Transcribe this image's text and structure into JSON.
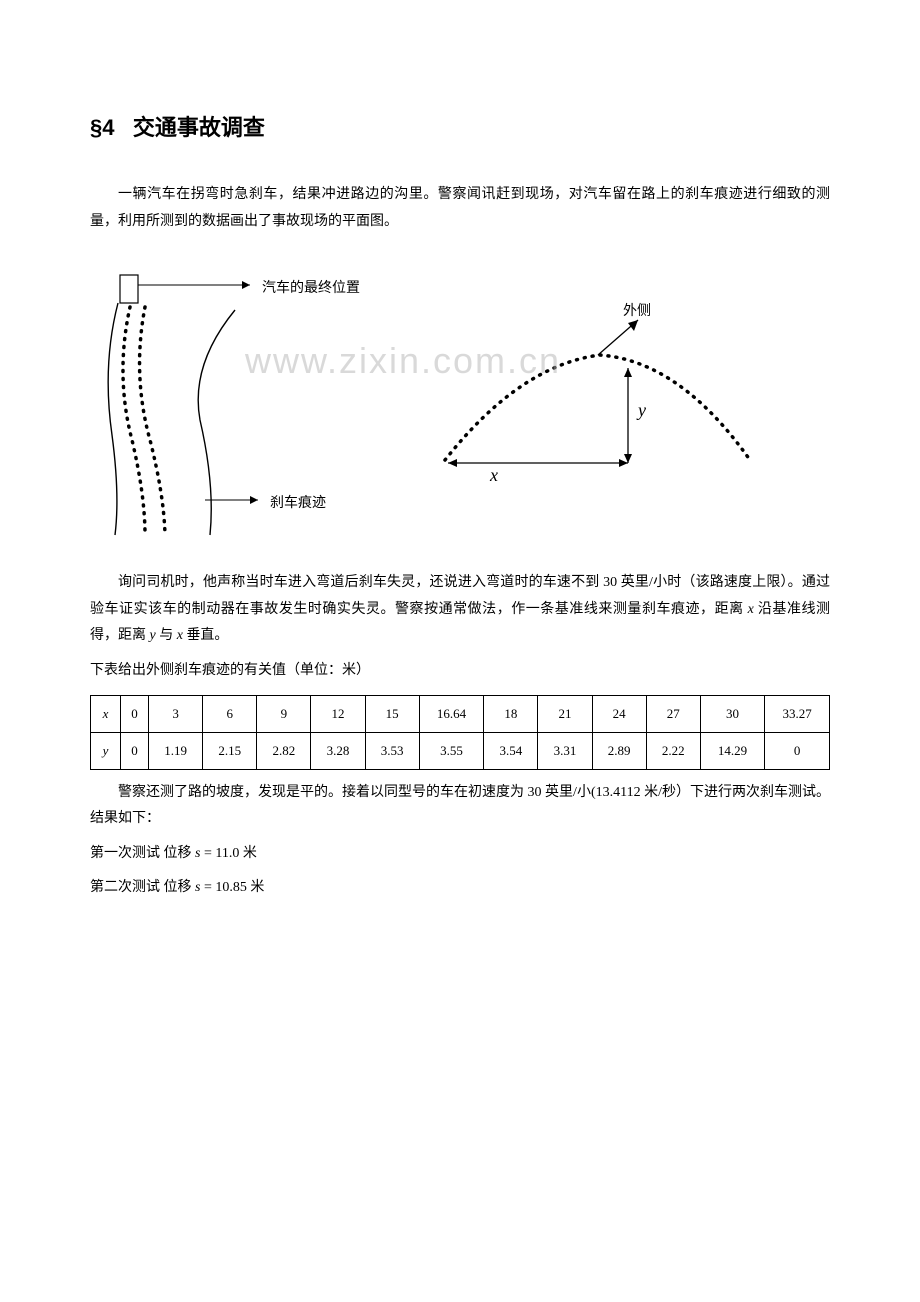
{
  "section": {
    "number": "§4",
    "title": "交通事故调查"
  },
  "paragraphs": {
    "p1": "一辆汽车在拐弯时急刹车，结果冲进路边的沟里。警察闻讯赶到现场，对汽车留在路上的刹车痕迹进行细致的测量，利用所测到的数据画出了事故现场的平面图。",
    "p2_part1": "询问司机时，他声称当时车进入弯道后刹车失灵，还说进入弯道时的车速不到 30 英里/小时（该路速度上限）。通过验车证实该车的制动器在事故发生时确实失灵。警察按通常做法，作一条基准线来测量刹车痕迹，距离 ",
    "p2_part2": " 沿基准线测得，距离 ",
    "p2_part3": " 与 ",
    "p2_part4": " 垂直。",
    "table_caption": "下表给出外侧刹车痕迹的有关值（单位：米）",
    "p3": "警察还测了路的坡度，发现是平的。接着以同型号的车在初速度为 30 英里/小(13.4112 米/秒）下进行两次刹车测试。结果如下：",
    "test1_label": "第一次测试  位移 ",
    "test1_value": " = 11.0 米",
    "test2_label": "第二次测试  位移 ",
    "test2_value": " = 10.85 米"
  },
  "diagram_labels": {
    "car_position": "汽车的最终位置",
    "brake_trace": "刹车痕迹",
    "outside": "外侧",
    "x_label": "x",
    "y_label": "y"
  },
  "watermark_text": "www.zixin.com.cn",
  "table": {
    "row_headers": [
      "x",
      "y"
    ],
    "columns": [
      "0",
      "3",
      "6",
      "9",
      "12",
      "15",
      "16.64",
      "18",
      "21",
      "24",
      "27",
      "30",
      "33.27"
    ],
    "values": [
      "0",
      "1.19",
      "2.15",
      "2.82",
      "3.28",
      "3.53",
      "3.55",
      "3.54",
      "3.31",
      "2.89",
      "2.22",
      "14.29",
      "0"
    ]
  },
  "colors": {
    "text": "#000000",
    "background": "#ffffff",
    "watermark": "rgba(180,180,180,0.5)",
    "border": "#000000"
  },
  "math_vars": {
    "x": "x",
    "y": "y",
    "s": "s"
  }
}
